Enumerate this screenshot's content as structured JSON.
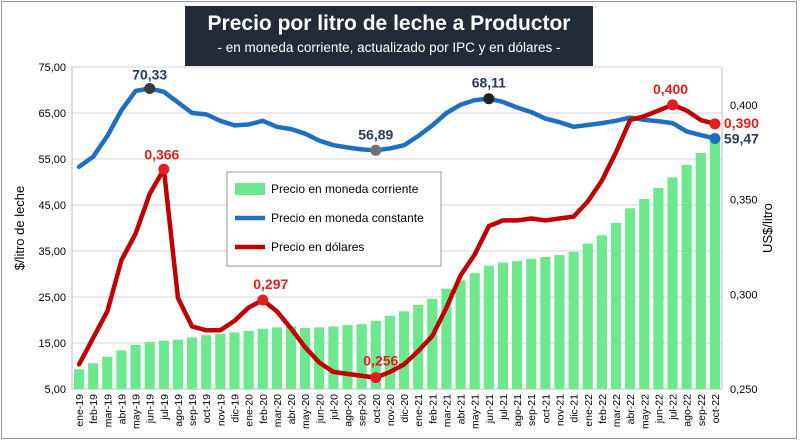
{
  "chart_data": {
    "type": "bar+line",
    "title": "Precio por litro de leche a Productor",
    "subtitle": "- en moneda corriente, actualizado por IPC y en dólares -",
    "ylabel": "$/litro de leche",
    "y2label": "US$/litro",
    "ylim": [
      5,
      75
    ],
    "y2lim": [
      0.25,
      0.42
    ],
    "yticks": [
      "5,00",
      "15,00",
      "25,00",
      "35,00",
      "45,00",
      "55,00",
      "65,00",
      "75,00"
    ],
    "y2ticks": [
      "0,250",
      "0,300",
      "0,350",
      "0,400"
    ],
    "categories": [
      "ene-19",
      "feb-19",
      "mar-19",
      "abr-19",
      "may-19",
      "jun-19",
      "jul-19",
      "ago-19",
      "sep-19",
      "oct-19",
      "nov-19",
      "dic-19",
      "ene-20",
      "feb-20",
      "mar-20",
      "abr-20",
      "may-20",
      "jun-20",
      "jul-20",
      "ago-20",
      "sep-20",
      "oct-20",
      "nov-20",
      "dic-20",
      "ene-21",
      "feb-21",
      "mar-21",
      "abr-21",
      "may-21",
      "jun-21",
      "jul-21",
      "ago-21",
      "sep-21",
      "oct-21",
      "nov-21",
      "dic-21",
      "ene-22",
      "feb-22",
      "mar-22",
      "abr-22",
      "may-22",
      "jun-22",
      "jul-22",
      "ago-22",
      "sep-22",
      "oct-22"
    ],
    "tick_labels": [
      "ene-19",
      "feb-19",
      "mar-19",
      "abr-19",
      "may-19",
      "jun-19",
      "jul-19",
      "ago-19",
      "sep-19",
      "oct-19",
      "nov-19",
      "dic-19",
      "ene-20",
      "feb-20",
      "mar-20",
      "abr-20",
      "may-20",
      "jun-20",
      "jul-20",
      "ago-20",
      "sep-20",
      "oct-20",
      "nov-20",
      "dic-20",
      "ene-21",
      "feb-21",
      "mar-21",
      "abr-21",
      "may-21",
      "jun-21",
      "jul-21",
      "ago-21",
      "sep-21",
      "oct-21",
      "nov-21",
      "dic-21",
      "ene-22",
      "feb-22",
      "mar-22",
      "abr-22",
      "may-22",
      "jun-22",
      "jul-22",
      "ago-22",
      "sep-22",
      "oct-22"
    ],
    "legend_position": "center",
    "grid": true,
    "series": [
      {
        "name": "Precio en moneda corriente",
        "kind": "bar",
        "axis": "left",
        "color": "#6ee88f",
        "values": [
          9.3,
          10.6,
          12.0,
          13.4,
          14.6,
          15.2,
          15.5,
          15.7,
          16.2,
          16.7,
          17.0,
          17.3,
          17.6,
          18.1,
          18.4,
          18.6,
          18.3,
          18.4,
          18.6,
          18.9,
          19.1,
          19.8,
          20.9,
          21.9,
          23.3,
          24.6,
          26.8,
          28.6,
          30.2,
          31.8,
          32.5,
          32.8,
          33.3,
          33.7,
          34.1,
          34.8,
          36.6,
          38.4,
          41.1,
          44.3,
          46.3,
          48.7,
          51.0,
          53.7,
          56.3,
          59.47
        ]
      },
      {
        "name": "Precio en moneda constante",
        "kind": "line",
        "axis": "left",
        "color": "#1f6fc1",
        "values": [
          53.3,
          55.5,
          60.0,
          65.6,
          69.8,
          70.33,
          69.6,
          67.3,
          65.0,
          64.7,
          63.3,
          62.3,
          62.5,
          63.3,
          62.0,
          61.5,
          60.5,
          59.0,
          58.0,
          57.5,
          57.1,
          56.89,
          57.3,
          58.0,
          60.0,
          62.3,
          65.0,
          66.8,
          67.8,
          68.11,
          67.4,
          66.2,
          65.2,
          63.8,
          63.0,
          62.0,
          62.4,
          62.8,
          63.3,
          64.0,
          63.5,
          63.2,
          62.8,
          61.0,
          60.2,
          59.47
        ]
      },
      {
        "name": "Precio en dólares",
        "kind": "line",
        "axis": "right",
        "color": "#c00000",
        "values": [
          0.263,
          0.277,
          0.291,
          0.318,
          0.332,
          0.353,
          0.366,
          0.298,
          0.283,
          0.281,
          0.281,
          0.286,
          0.293,
          0.297,
          0.291,
          0.282,
          0.272,
          0.264,
          0.259,
          0.258,
          0.257,
          0.256,
          0.259,
          0.263,
          0.27,
          0.278,
          0.293,
          0.31,
          0.321,
          0.336,
          0.339,
          0.339,
          0.34,
          0.339,
          0.34,
          0.341,
          0.349,
          0.36,
          0.375,
          0.392,
          0.394,
          0.397,
          0.4,
          0.397,
          0.392,
          0.39
        ]
      }
    ],
    "annotations": [
      {
        "series": 1,
        "index": 5,
        "text": "70,33"
      },
      {
        "series": 1,
        "index": 21,
        "text": "56,89"
      },
      {
        "series": 1,
        "index": 29,
        "text": "68,11"
      },
      {
        "series": 1,
        "index": 45,
        "text": "59,47"
      },
      {
        "series": 2,
        "index": 6,
        "text": "0,366"
      },
      {
        "series": 2,
        "index": 13,
        "text": "0,297"
      },
      {
        "series": 2,
        "index": 21,
        "text": "0,256"
      },
      {
        "series": 2,
        "index": 42,
        "text": "0,400"
      },
      {
        "series": 2,
        "index": 45,
        "text": "0,390"
      }
    ]
  }
}
